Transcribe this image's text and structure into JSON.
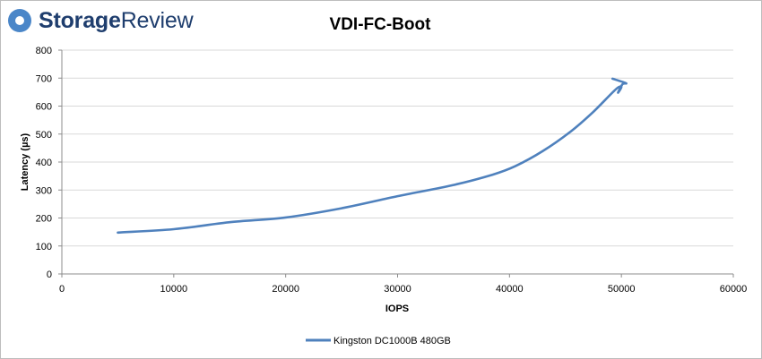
{
  "brand": {
    "name_bold": "Storage",
    "name_regular": "Review",
    "logo_color": "#1f3e6e",
    "accent_color": "#4a86c8"
  },
  "chart_data": {
    "type": "line",
    "title": "VDI-FC-Boot",
    "xlabel": "IOPS",
    "ylabel": "Latency (µs)",
    "xlim": [
      0,
      60000
    ],
    "ylim": [
      0,
      800
    ],
    "x_ticks": [
      0,
      10000,
      20000,
      30000,
      40000,
      50000,
      60000
    ],
    "y_ticks": [
      0,
      100,
      200,
      300,
      400,
      500,
      600,
      700,
      800
    ],
    "grid": "horizontal",
    "legend_position": "bottom",
    "series": [
      {
        "name": "Kingston DC1000B 480GB",
        "color": "#4f81bd",
        "points": [
          {
            "x": 5000,
            "y": 148
          },
          {
            "x": 10000,
            "y": 160
          },
          {
            "x": 15000,
            "y": 185
          },
          {
            "x": 20000,
            "y": 202
          },
          {
            "x": 25000,
            "y": 235
          },
          {
            "x": 30000,
            "y": 278
          },
          {
            "x": 35000,
            "y": 318
          },
          {
            "x": 38500,
            "y": 355
          },
          {
            "x": 40500,
            "y": 385
          },
          {
            "x": 43000,
            "y": 440
          },
          {
            "x": 45500,
            "y": 510
          },
          {
            "x": 47500,
            "y": 580
          },
          {
            "x": 49500,
            "y": 660
          },
          {
            "x": 50000,
            "y": 668
          },
          {
            "x": 49700,
            "y": 648
          },
          {
            "x": 50100,
            "y": 678
          },
          {
            "x": 50400,
            "y": 682
          },
          {
            "x": 49200,
            "y": 698
          }
        ]
      }
    ]
  }
}
